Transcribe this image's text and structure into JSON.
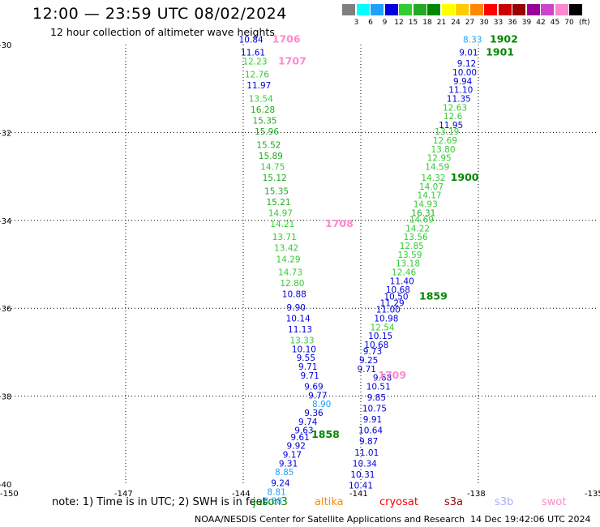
{
  "header": {
    "title": "12:00 — 23:59 UTC 08/02/2024",
    "subtitle": "12 hour collection of altimeter wave heights"
  },
  "legend": {
    "unit_label": "(ft)",
    "colors": [
      "#808080",
      "#00ffff",
      "#1ea0ff",
      "#0000dd",
      "#33cc33",
      "#22aa22",
      "#008800",
      "#ffff00",
      "#ffcc00",
      "#ff8800",
      "#ff0000",
      "#cc0000",
      "#990000",
      "#990099",
      "#cc44cc",
      "#ff88cc",
      "#000000"
    ],
    "labels": [
      "3",
      "6",
      "9",
      "12",
      "15",
      "18",
      "21",
      "24",
      "27",
      "30",
      "33",
      "36",
      "39",
      "42",
      "45",
      "70"
    ]
  },
  "axes": {
    "lon_labels": [
      "-150",
      "-147",
      "-144",
      "-141",
      "-138",
      "-135"
    ],
    "lat_labels": [
      "-30",
      "-32",
      "-34",
      "-36",
      "-38",
      "-40"
    ]
  },
  "note": "note: 1) Time is in UTC; 2) SWH is in feet",
  "satellites": [
    {
      "name": "jason3",
      "color": "#008800"
    },
    {
      "name": "altika",
      "color": "#ff8800"
    },
    {
      "name": "cryosat",
      "color": "#ff0000"
    },
    {
      "name": "s3a",
      "color": "#990000"
    },
    {
      "name": "s3b",
      "color": "#aaaaff"
    },
    {
      "name": "swot",
      "color": "#ff88cc"
    }
  ],
  "footer": {
    "credit": "NOAA/NESDIS Center for Satellite Applications and Research",
    "timestamp": "14 Dec 19:42:06 UTC 2024"
  },
  "map_data": {
    "track_swot": [
      {
        "lon": -143.8,
        "lat": -29.95,
        "v": "10.84",
        "c": "#0000dd"
      },
      {
        "lon": -143.75,
        "lat": -30.25,
        "v": "11.61",
        "c": "#0000dd"
      },
      {
        "lon": -143.7,
        "lat": -30.45,
        "v": "12.23",
        "c": "#33cc33"
      },
      {
        "lon": -143.65,
        "lat": -30.75,
        "v": "12.76",
        "c": "#33cc33"
      },
      {
        "lon": -143.6,
        "lat": -31.0,
        "v": "11.97",
        "c": "#0000dd"
      },
      {
        "lon": -143.55,
        "lat": -31.3,
        "v": "13.54",
        "c": "#33cc33"
      },
      {
        "lon": -143.5,
        "lat": -31.55,
        "v": "16.28",
        "c": "#22aa22"
      },
      {
        "lon": -143.45,
        "lat": -31.8,
        "v": "15.35",
        "c": "#22aa22"
      },
      {
        "lon": -143.4,
        "lat": -32.05,
        "v": "15.96",
        "c": "#22aa22"
      },
      {
        "lon": -143.35,
        "lat": -32.35,
        "v": "15.52",
        "c": "#22aa22"
      },
      {
        "lon": -143.3,
        "lat": -32.6,
        "v": "15.89",
        "c": "#22aa22"
      },
      {
        "lon": -143.25,
        "lat": -32.85,
        "v": "14.75",
        "c": "#33cc33"
      },
      {
        "lon": -143.2,
        "lat": -33.1,
        "v": "15.12",
        "c": "#22aa22"
      },
      {
        "lon": -143.15,
        "lat": -33.4,
        "v": "15.35",
        "c": "#22aa22"
      },
      {
        "lon": -143.1,
        "lat": -33.65,
        "v": "15.21",
        "c": "#22aa22"
      },
      {
        "lon": -143.05,
        "lat": -33.9,
        "v": "14.97",
        "c": "#33cc33"
      },
      {
        "lon": -143.0,
        "lat": -34.15,
        "v": "14.21",
        "c": "#33cc33"
      },
      {
        "lon": -142.95,
        "lat": -34.45,
        "v": "13.71",
        "c": "#33cc33"
      },
      {
        "lon": -142.9,
        "lat": -34.7,
        "v": "13.42",
        "c": "#33cc33"
      },
      {
        "lon": -142.85,
        "lat": -34.95,
        "v": "14.29",
        "c": "#33cc33"
      },
      {
        "lon": -142.8,
        "lat": -35.25,
        "v": "14.73",
        "c": "#33cc33"
      },
      {
        "lon": -142.75,
        "lat": -35.5,
        "v": "12.80",
        "c": "#33cc33"
      },
      {
        "lon": -142.7,
        "lat": -35.75,
        "v": "10.88",
        "c": "#0000dd"
      },
      {
        "lon": -142.65,
        "lat": -36.05,
        "v": "9.90",
        "c": "#0000dd"
      },
      {
        "lon": -142.6,
        "lat": -36.3,
        "v": "10.14",
        "c": "#0000dd"
      },
      {
        "lon": -142.55,
        "lat": -36.55,
        "v": "11.13",
        "c": "#0000dd"
      },
      {
        "lon": -142.5,
        "lat": -36.8,
        "v": "13.33",
        "c": "#33cc33"
      },
      {
        "lon": -142.45,
        "lat": -37.0,
        "v": "10.10",
        "c": "#0000dd"
      },
      {
        "lon": -142.4,
        "lat": -37.2,
        "v": "9.55",
        "c": "#0000dd"
      },
      {
        "lon": -142.35,
        "lat": -37.4,
        "v": "9.71",
        "c": "#0000dd"
      },
      {
        "lon": -142.3,
        "lat": -37.6,
        "v": "9.71",
        "c": "#0000dd"
      },
      {
        "lon": -142.2,
        "lat": -37.85,
        "v": "9.69",
        "c": "#0000dd"
      },
      {
        "lon": -142.1,
        "lat": -38.05,
        "v": "9.77",
        "c": "#0000dd"
      },
      {
        "lon": -142.0,
        "lat": -38.25,
        "v": "8.90",
        "c": "#1ea0ff"
      }
    ],
    "track_a": [
      {
        "lon": -138.15,
        "lat": -29.95,
        "v": "8.33",
        "c": "#1ea0ff"
      },
      {
        "lon": -138.25,
        "lat": -30.25,
        "v": "9.01",
        "c": "#0000dd"
      },
      {
        "lon": -138.3,
        "lat": -30.5,
        "v": "9.12",
        "c": "#0000dd"
      },
      {
        "lon": -138.35,
        "lat": -30.7,
        "v": "10.00",
        "c": "#0000dd"
      },
      {
        "lon": -138.4,
        "lat": -30.9,
        "v": "9.94",
        "c": "#0000dd"
      },
      {
        "lon": -138.45,
        "lat": -31.1,
        "v": "11.10",
        "c": "#0000dd"
      },
      {
        "lon": -138.5,
        "lat": -31.3,
        "v": "11.35",
        "c": "#0000dd"
      },
      {
        "lon": -138.6,
        "lat": -31.5,
        "v": "12.63",
        "c": "#33cc33"
      },
      {
        "lon": -138.65,
        "lat": -31.7,
        "v": "12.6",
        "c": "#33cc33"
      },
      {
        "lon": -138.7,
        "lat": -31.9,
        "v": "11.95",
        "c": "#0000dd"
      },
      {
        "lon": -138.8,
        "lat": -32.05,
        "v": "13.19",
        "c": "#33cc33"
      },
      {
        "lon": -138.85,
        "lat": -32.25,
        "v": "12.69",
        "c": "#33cc33"
      },
      {
        "lon": -138.9,
        "lat": -32.45,
        "v": "13.80",
        "c": "#33cc33"
      },
      {
        "lon": -139.0,
        "lat": -32.65,
        "v": "12.95",
        "c": "#33cc33"
      },
      {
        "lon": -139.05,
        "lat": -32.85,
        "v": "14.59",
        "c": "#33cc33"
      },
      {
        "lon": -139.15,
        "lat": -33.1,
        "v": "14.32",
        "c": "#33cc33"
      },
      {
        "lon": -139.2,
        "lat": -33.3,
        "v": "14.07",
        "c": "#33cc33"
      },
      {
        "lon": -139.25,
        "lat": -33.5,
        "v": "14.17",
        "c": "#33cc33"
      },
      {
        "lon": -139.35,
        "lat": -33.7,
        "v": "14.93",
        "c": "#33cc33"
      },
      {
        "lon": -139.4,
        "lat": -33.9,
        "v": "16.31",
        "c": "#22aa22"
      },
      {
        "lon": -139.45,
        "lat": -34.05,
        "v": "14.69",
        "c": "#33cc33"
      },
      {
        "lon": -139.55,
        "lat": -34.25,
        "v": "14.22",
        "c": "#33cc33"
      },
      {
        "lon": -139.6,
        "lat": -34.45,
        "v": "13.56",
        "c": "#33cc33"
      },
      {
        "lon": -139.7,
        "lat": -34.65,
        "v": "12.85",
        "c": "#33cc33"
      },
      {
        "lon": -139.75,
        "lat": -34.85,
        "v": "13.59",
        "c": "#33cc33"
      },
      {
        "lon": -139.8,
        "lat": -35.05,
        "v": "13.18",
        "c": "#33cc33"
      },
      {
        "lon": -139.9,
        "lat": -35.25,
        "v": "12.46",
        "c": "#33cc33"
      },
      {
        "lon": -139.95,
        "lat": -35.45,
        "v": "11.40",
        "c": "#0000dd"
      },
      {
        "lon": -140.05,
        "lat": -35.65,
        "v": "10.68",
        "c": "#0000dd"
      },
      {
        "lon": -140.1,
        "lat": -35.8,
        "v": "10.50",
        "c": "#0000dd"
      },
      {
        "lon": -140.2,
        "lat": -35.95,
        "v": "11.29",
        "c": "#0000dd"
      },
      {
        "lon": -140.3,
        "lat": -36.1,
        "v": "11.00",
        "c": "#0000dd"
      },
      {
        "lon": -140.35,
        "lat": -36.3,
        "v": "10.98",
        "c": "#0000dd"
      },
      {
        "lon": -140.45,
        "lat": -36.5,
        "v": "12.54",
        "c": "#33cc33"
      },
      {
        "lon": -140.5,
        "lat": -36.7,
        "v": "10.15",
        "c": "#0000dd"
      },
      {
        "lon": -140.6,
        "lat": -36.9,
        "v": "10.68",
        "c": "#0000dd"
      },
      {
        "lon": -140.7,
        "lat": -37.05,
        "v": "9.73",
        "c": "#0000dd"
      },
      {
        "lon": -140.8,
        "lat": -37.25,
        "v": "9.25",
        "c": "#0000dd"
      },
      {
        "lon": -140.85,
        "lat": -37.45,
        "v": "9.71",
        "c": "#0000dd"
      },
      {
        "lon": -142.2,
        "lat": -38.45,
        "v": "9.36",
        "c": "#0000dd"
      },
      {
        "lon": -142.35,
        "lat": -38.65,
        "v": "9.74",
        "c": "#0000dd"
      },
      {
        "lon": -142.45,
        "lat": -38.85,
        "v": "9.63",
        "c": "#0000dd"
      },
      {
        "lon": -142.55,
        "lat": -39.0,
        "v": "9.61",
        "c": "#0000dd"
      },
      {
        "lon": -142.65,
        "lat": -39.2,
        "v": "9.92",
        "c": "#0000dd"
      },
      {
        "lon": -142.75,
        "lat": -39.4,
        "v": "9.17",
        "c": "#0000dd"
      },
      {
        "lon": -142.85,
        "lat": -39.6,
        "v": "9.31",
        "c": "#0000dd"
      },
      {
        "lon": -142.95,
        "lat": -39.8,
        "v": "8.85",
        "c": "#1ea0ff"
      },
      {
        "lon": -143.05,
        "lat": -40.05,
        "v": "9.24",
        "c": "#0000dd"
      },
      {
        "lon": -143.15,
        "lat": -40.25,
        "v": "8.81",
        "c": "#1ea0ff"
      },
      {
        "lon": -143.25,
        "lat": -40.45,
        "v": "8.88",
        "c": "#1ea0ff"
      }
    ],
    "track_b": [
      {
        "lon": -140.45,
        "lat": -37.65,
        "v": "9.68",
        "c": "#0000dd"
      },
      {
        "lon": -140.55,
        "lat": -37.85,
        "v": "10.51",
        "c": "#0000dd"
      },
      {
        "lon": -140.6,
        "lat": -38.1,
        "v": "9.85",
        "c": "#0000dd"
      },
      {
        "lon": -140.65,
        "lat": -38.35,
        "v": "10.75",
        "c": "#0000dd"
      },
      {
        "lon": -140.7,
        "lat": -38.6,
        "v": "9.91",
        "c": "#0000dd"
      },
      {
        "lon": -140.75,
        "lat": -38.85,
        "v": "10.64",
        "c": "#0000dd"
      },
      {
        "lon": -140.8,
        "lat": -39.1,
        "v": "9.87",
        "c": "#0000dd"
      },
      {
        "lon": -140.85,
        "lat": -39.35,
        "v": "11.01",
        "c": "#0000dd"
      },
      {
        "lon": -140.9,
        "lat": -39.6,
        "v": "10.34",
        "c": "#0000dd"
      },
      {
        "lon": -140.95,
        "lat": -39.85,
        "v": "10.31",
        "c": "#0000dd"
      },
      {
        "lon": -141.0,
        "lat": -40.1,
        "v": "10.41",
        "c": "#0000dd"
      }
    ],
    "time_labels": [
      {
        "lon": -142.9,
        "lat": -29.95,
        "text": "1706",
        "c": "#ff88cc"
      },
      {
        "lon": -142.75,
        "lat": -30.45,
        "text": "1707",
        "c": "#ff88cc"
      },
      {
        "lon": -141.55,
        "lat": -34.15,
        "text": "1708",
        "c": "#ff88cc"
      },
      {
        "lon": -140.2,
        "lat": -37.6,
        "text": "1709",
        "c": "#ff88cc"
      },
      {
        "lon": -137.35,
        "lat": -29.95,
        "text": "1902",
        "c": "#008800"
      },
      {
        "lon": -137.45,
        "lat": -30.25,
        "text": "1901",
        "c": "#008800"
      },
      {
        "lon": -138.35,
        "lat": -33.1,
        "text": "1900",
        "c": "#008800"
      },
      {
        "lon": -139.15,
        "lat": -35.8,
        "text": "1859",
        "c": "#008800"
      },
      {
        "lon": -141.9,
        "lat": -38.95,
        "text": "1858",
        "c": "#008800"
      }
    ]
  }
}
